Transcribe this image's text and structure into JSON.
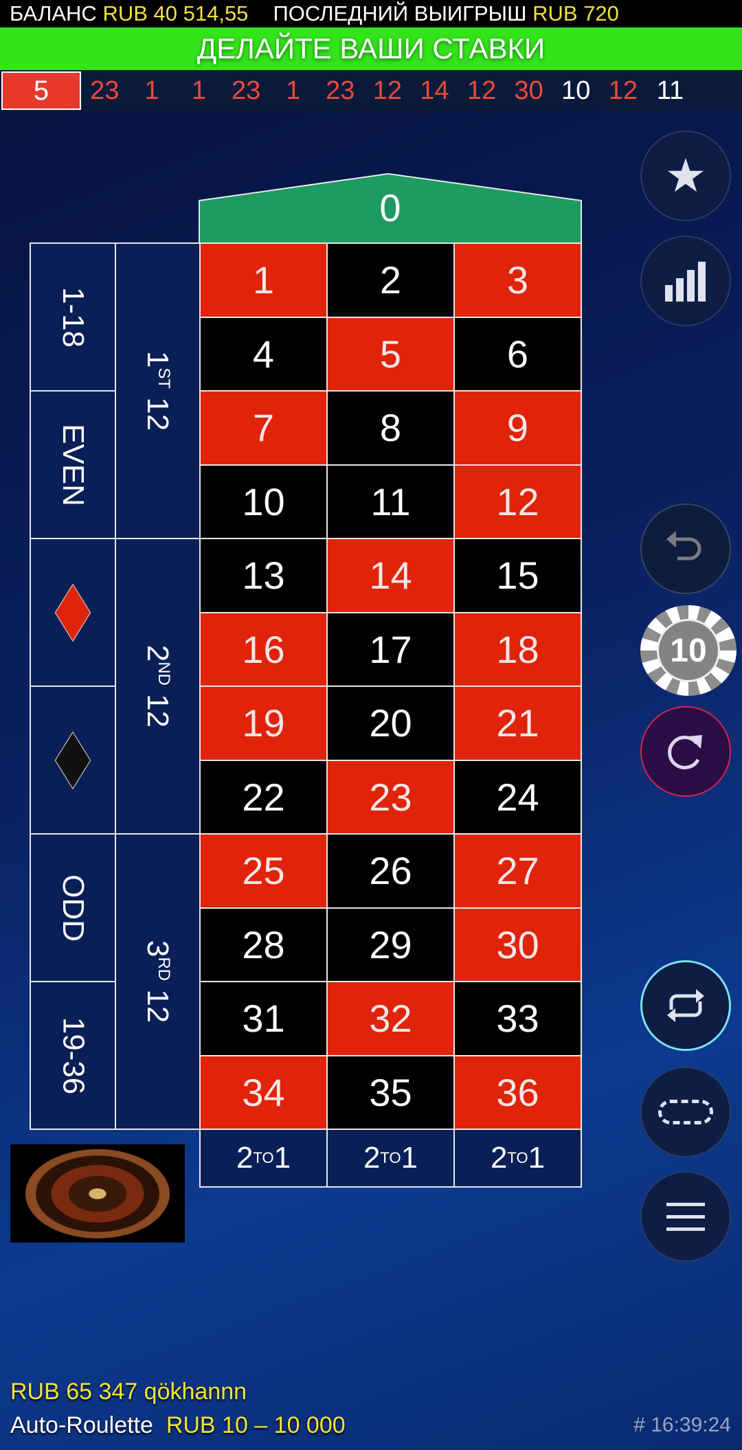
{
  "topbar": {
    "balance_label": "БАЛАНС",
    "balance_value": "RUB 40 514,55",
    "last_win_label": "ПОСЛЕДНИЙ ВЫИГРЫШ",
    "last_win_value": "RUB 720"
  },
  "status": "ДЕЛАЙТЕ ВАШИ СТАВКИ",
  "history": [
    {
      "n": "5",
      "c": "#e6392b"
    },
    {
      "n": "23",
      "c": "#f0493a"
    },
    {
      "n": "1",
      "c": "#f0493a"
    },
    {
      "n": "1",
      "c": "#f0493a"
    },
    {
      "n": "23",
      "c": "#f0493a"
    },
    {
      "n": "1",
      "c": "#f0493a"
    },
    {
      "n": "23",
      "c": "#f0493a"
    },
    {
      "n": "12",
      "c": "#f0493a"
    },
    {
      "n": "14",
      "c": "#f0493a"
    },
    {
      "n": "12",
      "c": "#f0493a"
    },
    {
      "n": "30",
      "c": "#f0493a"
    },
    {
      "n": "10",
      "c": "#ffffff"
    },
    {
      "n": "12",
      "c": "#f0493a"
    },
    {
      "n": "11",
      "c": "#ffffff"
    }
  ],
  "table": {
    "zero": "0",
    "red": [
      1,
      3,
      5,
      7,
      9,
      12,
      14,
      16,
      18,
      19,
      21,
      23,
      25,
      27,
      30,
      32,
      34,
      36
    ],
    "outside": [
      "1-18",
      "EVEN",
      "diamond-red",
      "diamond-black",
      "ODD",
      "19-36"
    ],
    "dozens": [
      {
        "n": "1",
        "sup": "ST",
        "t": "12"
      },
      {
        "n": "2",
        "sup": "ND",
        "t": "12"
      },
      {
        "n": "3",
        "sup": "RD",
        "t": "12"
      }
    ],
    "columns": [
      {
        "n": "2",
        "sup": "TO",
        "t": "1"
      },
      {
        "n": "2",
        "sup": "TO",
        "t": "1"
      },
      {
        "n": "2",
        "sup": "TO",
        "t": "1"
      }
    ]
  },
  "chip": {
    "value": "10"
  },
  "footer": {
    "table_limit_players": "RUB 65 347 qökhannn",
    "game_name": "Auto-Roulette",
    "limits": "RUB 10 – 10 000",
    "time": "# 16:39:24"
  },
  "colors": {
    "red": "#e0230b",
    "green": "#33e41b",
    "zero": "#1e9a63",
    "gold": "#f2e23a"
  }
}
